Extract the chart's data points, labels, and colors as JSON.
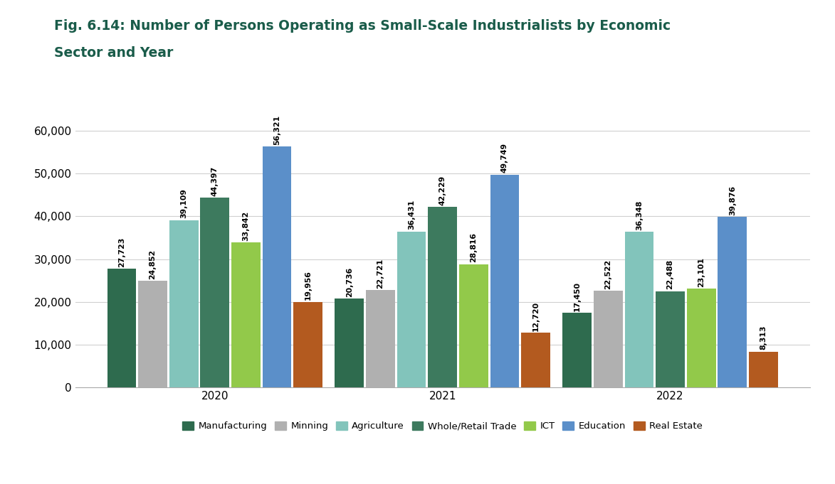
{
  "title_line1": "Fig. 6.14: Number of Persons Operating as Small-Scale Industrialists by Economic",
  "title_line2": "Sector and Year",
  "years": [
    "2020",
    "2021",
    "2022"
  ],
  "categories": [
    "Manufacturing",
    "Minning",
    "Agriculture",
    "Whole/Retail Trade",
    "ICT",
    "Education",
    "Real Estate"
  ],
  "colors": [
    "#2e6b4e",
    "#b0b0b0",
    "#82c4bb",
    "#3d7a5e",
    "#92c94a",
    "#5b8fc9",
    "#b35a1f"
  ],
  "values": {
    "2020": [
      27723,
      24852,
      39109,
      44397,
      33842,
      56321,
      19956
    ],
    "2021": [
      20736,
      22721,
      36431,
      42229,
      28816,
      49749,
      12720
    ],
    "2022": [
      17450,
      22522,
      36348,
      22488,
      23101,
      39876,
      8313
    ]
  },
  "ylim": [
    0,
    68000
  ],
  "yticks": [
    0,
    10000,
    20000,
    30000,
    40000,
    50000,
    60000
  ],
  "ytick_labels": [
    "0",
    "10,000",
    "20,000",
    "30,000",
    "40,000",
    "50,000",
    "60,000"
  ],
  "title_color": "#1a5c4a",
  "title_fontsize": 13.5,
  "label_fontsize": 7.8,
  "legend_fontsize": 9.5,
  "axis_fontsize": 11,
  "background_color": "#ffffff",
  "group_centers": [
    1.0,
    3.2,
    5.4
  ],
  "bar_width": 0.28,
  "bar_spacing": 0.3
}
